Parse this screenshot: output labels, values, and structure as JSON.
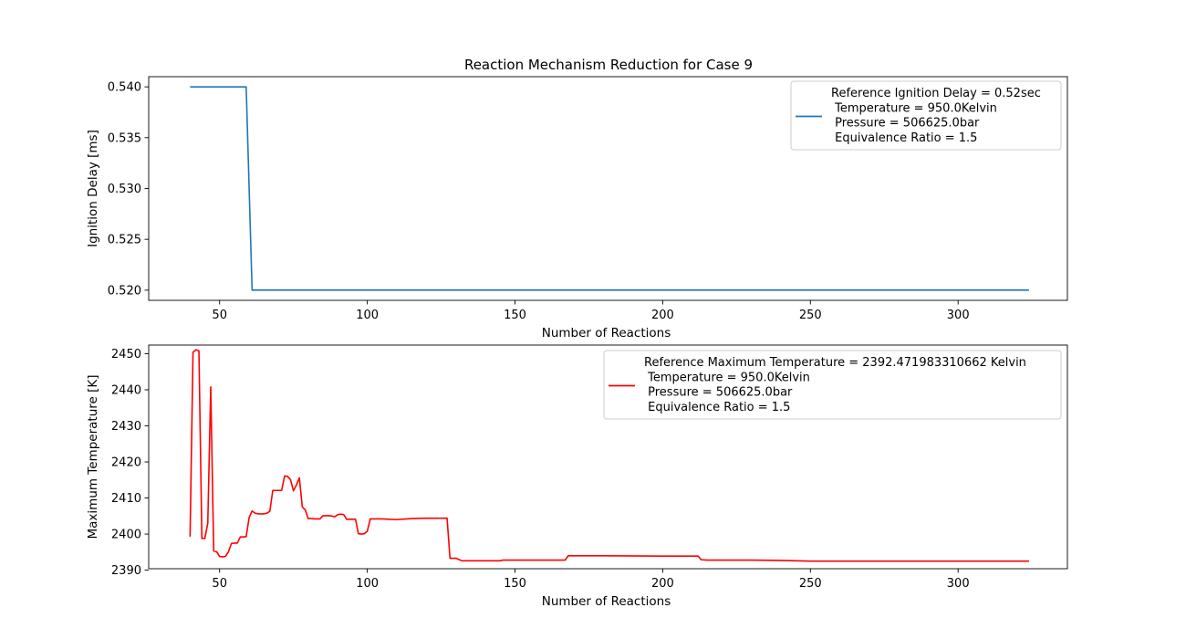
{
  "title": "Reaction Mechanism Reduction for Case 9",
  "colors": {
    "series_top": "#1f77b4",
    "series_bottom": "#ff0000",
    "axes": "#000000",
    "legend_border": "#cccccc"
  },
  "chart_data": [
    {
      "type": "line",
      "title": "Reaction Mechanism Reduction for Case 9",
      "xlabel": "Number of Reactions",
      "ylabel": "Ignition Delay [ms]",
      "xlim": [
        26,
        337
      ],
      "ylim": [
        0.519,
        0.541
      ],
      "xticks": [
        50,
        100,
        150,
        200,
        250,
        300
      ],
      "yticks": [
        0.52,
        0.525,
        0.53,
        0.535,
        0.54
      ],
      "xtick_labels": [
        "50",
        "100",
        "150",
        "200",
        "250",
        "300"
      ],
      "ytick_labels": [
        "0.520",
        "0.525",
        "0.530",
        "0.535",
        "0.540"
      ],
      "grid": false,
      "legend_position": "top-right",
      "legend": [
        "Reference Ignition Delay = 0.52sec",
        " Temperature = 950.0Kelvin",
        " Pressure = 506625.0bar",
        " Equivalence Ratio = 1.5"
      ],
      "series": [
        {
          "color": "#1f77b4",
          "x": [
            40,
            59,
            61,
            324
          ],
          "y": [
            0.54,
            0.54,
            0.52,
            0.52
          ]
        }
      ]
    },
    {
      "type": "line",
      "title": "",
      "xlabel": "Number of Reactions",
      "ylabel": "Maximum Temperature [K]",
      "xlim": [
        26,
        337
      ],
      "ylim": [
        2390.4,
        2452.4
      ],
      "xticks": [
        50,
        100,
        150,
        200,
        250,
        300
      ],
      "yticks": [
        2390,
        2400,
        2410,
        2420,
        2430,
        2440,
        2450
      ],
      "xtick_labels": [
        "50",
        "100",
        "150",
        "200",
        "250",
        "300"
      ],
      "ytick_labels": [
        "2390",
        "2400",
        "2410",
        "2420",
        "2430",
        "2440",
        "2450"
      ],
      "grid": false,
      "legend_position": "top-right",
      "legend": [
        "Reference Maximum Temperature = 2392.471983310662 Kelvin",
        " Temperature = 950.0Kelvin",
        " Pressure = 506625.0bar",
        " Equivalence Ratio = 1.5"
      ],
      "series": [
        {
          "color": "#ff0000",
          "x": [
            40,
            41,
            42,
            43,
            44,
            45,
            46,
            47,
            48,
            49,
            50,
            51,
            52,
            53,
            54,
            55,
            56,
            57,
            58,
            59,
            60,
            61,
            62,
            63,
            64,
            65,
            66,
            67,
            68,
            69,
            70,
            71,
            72,
            73,
            74,
            75,
            76,
            77,
            78,
            79,
            80,
            81,
            82,
            83,
            84,
            85,
            86,
            87,
            88,
            89,
            90,
            91,
            92,
            93,
            94,
            95,
            96,
            97,
            98,
            99,
            100,
            101,
            102,
            103,
            104,
            105,
            110,
            115,
            120,
            125,
            127,
            128,
            130,
            132,
            135,
            140,
            145,
            146,
            150,
            160,
            167,
            168,
            180,
            200,
            212,
            213,
            215,
            220,
            230,
            240,
            245,
            250,
            260,
            280,
            300,
            324
          ],
          "y": [
            2399.3,
            2450.4,
            2451.1,
            2450.8,
            2398.8,
            2398.8,
            2403.0,
            2440.8,
            2395.3,
            2395.1,
            2393.8,
            2393.7,
            2393.8,
            2395.1,
            2397.4,
            2397.5,
            2397.5,
            2399.2,
            2399.2,
            2399.3,
            2404.6,
            2406.4,
            2405.8,
            2405.6,
            2405.6,
            2405.6,
            2405.8,
            2406.3,
            2412.1,
            2412.1,
            2412.1,
            2412.1,
            2416.1,
            2416.0,
            2415.1,
            2412.0,
            2413.6,
            2415.6,
            2407.5,
            2406.7,
            2404.3,
            2404.3,
            2404.2,
            2404.2,
            2404.2,
            2405.1,
            2405.1,
            2405.1,
            2405.0,
            2404.8,
            2405.4,
            2405.5,
            2405.4,
            2404.1,
            2404.1,
            2404.1,
            2404.1,
            2400.1,
            2400.0,
            2400.1,
            2400.8,
            2404.2,
            2404.2,
            2404.2,
            2404.2,
            2404.2,
            2404.0,
            2404.3,
            2404.4,
            2404.4,
            2404.4,
            2393.3,
            2393.3,
            2392.6,
            2392.6,
            2392.6,
            2392.6,
            2392.8,
            2392.8,
            2392.8,
            2392.8,
            2394.0,
            2394.0,
            2393.9,
            2393.9,
            2392.9,
            2392.8,
            2392.8,
            2392.8,
            2392.7,
            2392.6,
            2392.5,
            2392.5,
            2392.5,
            2392.5,
            2392.5
          ]
        }
      ]
    }
  ]
}
